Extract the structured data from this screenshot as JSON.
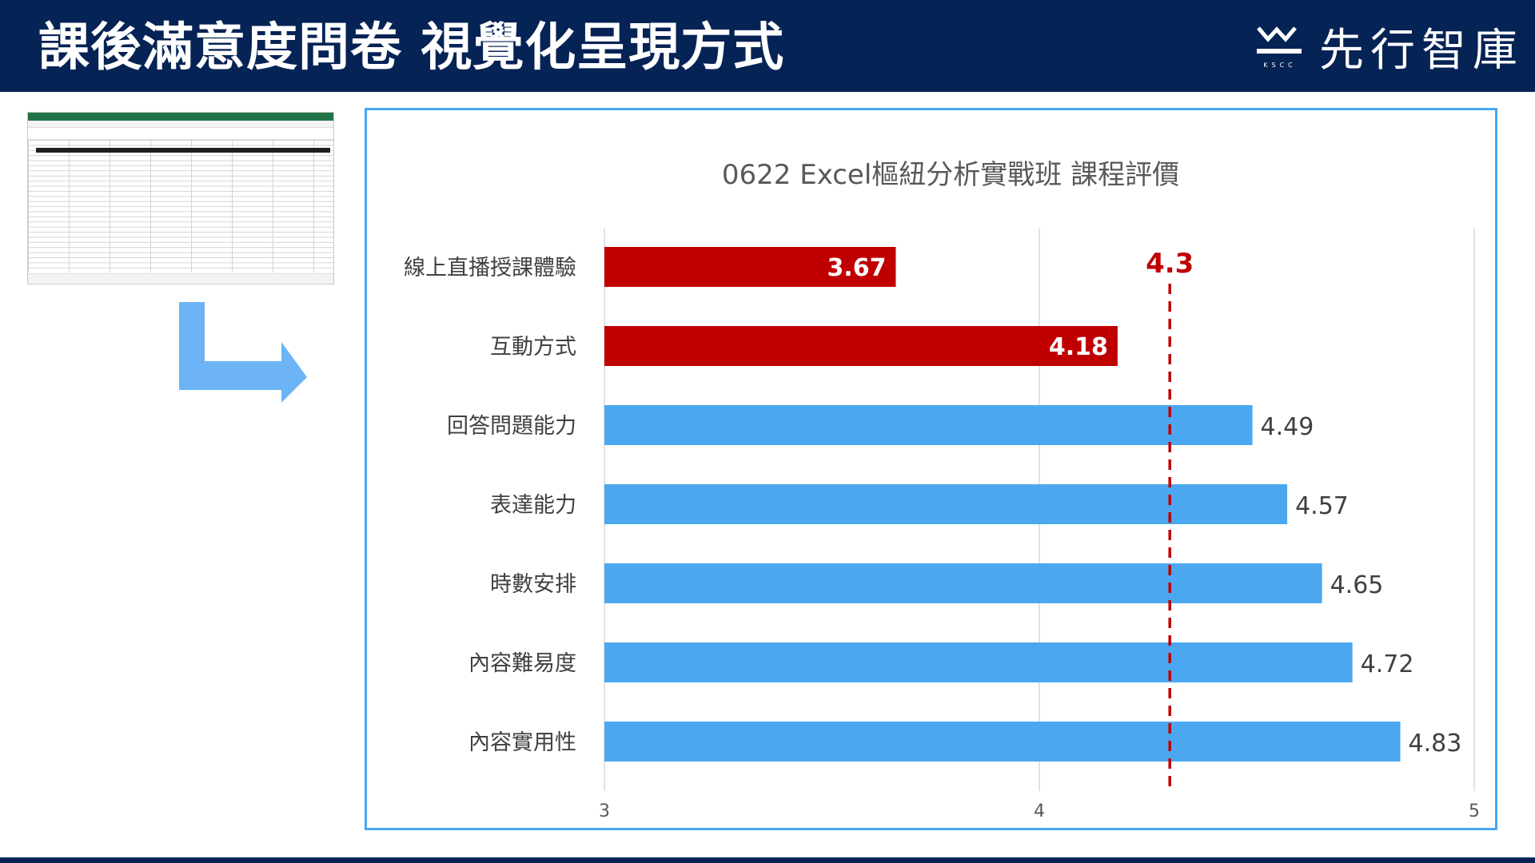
{
  "header": {
    "title": "課後滿意度問卷 視覺化呈現方式",
    "logo_text": "先行智庫",
    "logo_sub": "KSCC",
    "logo_icon": "ksc-mountain-logo-icon"
  },
  "colors": {
    "header_bg": "#062355",
    "below_target": "#C00000",
    "above_target": "#4BA8F0",
    "frame_border": "#4AA7F1",
    "target_line": "#C00000"
  },
  "thumbnail": {
    "icon": "spreadsheet-thumbnail"
  },
  "arrow": {
    "icon": "bent-arrow-right-icon"
  },
  "chart_data": {
    "type": "bar",
    "orientation": "horizontal",
    "title": "0622 Excel樞紐分析實戰班 課程評價",
    "categories": [
      "線上直播授課體驗",
      "互動方式",
      "回答問題能力",
      "表達能力",
      "時數安排",
      "內容難易度",
      "內容實用性"
    ],
    "values": [
      3.67,
      4.18,
      4.49,
      4.57,
      4.65,
      4.72,
      4.83
    ],
    "xlim": [
      3,
      5
    ],
    "xticks": [
      "3",
      "4",
      "5"
    ],
    "target_value": 4.3,
    "target_label": "4.3",
    "grid": true,
    "legend": "none"
  }
}
